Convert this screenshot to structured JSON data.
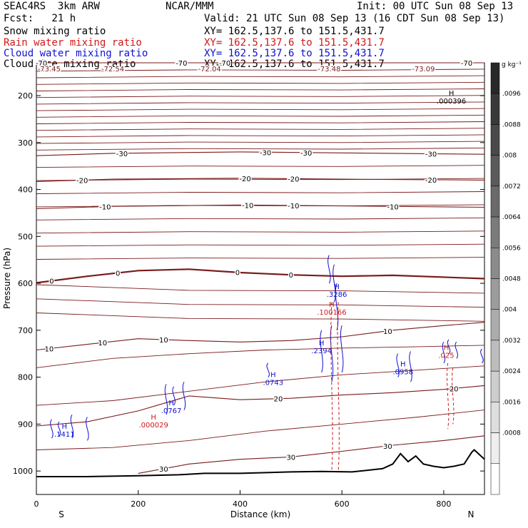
{
  "header": {
    "model": "SEAC4RS  3km ARW",
    "org": "NCAR/MMM",
    "init": "Init: 00 UTC Sun 08 Sep 13",
    "fcst": "Fcst:   21 h",
    "valid": "Valid: 21 UTC Sun 08 Sep 13 (16 CDT Sun 08 Sep 13)",
    "fields": [
      {
        "name": "Snow mixing ratio",
        "xy": "XY= 162.5,137.6 to 151.5,431.7",
        "color": "#000000"
      },
      {
        "name": "Rain water mixing ratio",
        "xy": "XY= 162.5,137.6 to 151.5,431.7",
        "color": "#d01818"
      },
      {
        "name": "Cloud water mixing ratio",
        "xy": "XY= 162.5,137.6 to 151.5,431.7",
        "color": "#1010d0"
      },
      {
        "name": "Cloud ice mixing ratio",
        "xy": "XY= 162.5,137.6 to 151.5,431.7",
        "color": "#000000"
      }
    ]
  },
  "colors": {
    "temperature": "#7a1a1a",
    "rain": "#d01818",
    "cloud": "#1010d0",
    "terrain": "#000000"
  },
  "chart_data": {
    "type": "cross-section",
    "xlabel": "Distance (km)",
    "ylabel": "Pressure (hPa)",
    "xlim": [
      0,
      880
    ],
    "ylim": [
      1050,
      130
    ],
    "x_ticks": [
      "0",
      "200",
      "400",
      "600",
      "800"
    ],
    "y_ticks": [
      "200",
      "300",
      "400",
      "500",
      "600",
      "700",
      "800",
      "900",
      "1000"
    ],
    "x_end_labels": {
      "left": "S",
      "right": "N"
    },
    "temperature_contours": [
      {
        "temp": -70,
        "labels": [
          {
            "x": 10,
            "text": "-70"
          },
          {
            "x": 285,
            "text": "-70"
          },
          {
            "x": 370,
            "text": "-70"
          },
          {
            "x": 845,
            "text": "-70"
          }
        ],
        "p": [
          [
            0,
            130
          ],
          [
            880,
            130
          ]
        ]
      },
      {
        "temp": -30,
        "labels": [
          {
            "x": 168,
            "text": "-30"
          },
          {
            "x": 450,
            "text": "-30"
          },
          {
            "x": 530,
            "text": "-30"
          },
          {
            "x": 775,
            "text": "-30"
          }
        ],
        "p": [
          [
            0,
            328
          ],
          [
            150,
            323
          ],
          [
            400,
            320
          ],
          [
            600,
            322
          ],
          [
            880,
            325
          ]
        ]
      },
      {
        "temp": -20,
        "labels": [
          {
            "x": 90,
            "text": "-20"
          },
          {
            "x": 410,
            "text": "-20"
          },
          {
            "x": 505,
            "text": "-20"
          },
          {
            "x": 775,
            "text": "-20"
          }
        ],
        "p": [
          [
            0,
            383
          ],
          [
            150,
            378
          ],
          [
            400,
            376
          ],
          [
            600,
            378
          ],
          [
            880,
            380
          ]
        ]
      },
      {
        "temp": -10,
        "labels": [
          {
            "x": 135,
            "text": "-10"
          },
          {
            "x": 415,
            "text": "-10"
          },
          {
            "x": 505,
            "text": "-10"
          },
          {
            "x": 700,
            "text": "-10"
          }
        ],
        "p": [
          [
            0,
            441
          ],
          [
            150,
            436
          ],
          [
            400,
            433
          ],
          [
            600,
            435
          ],
          [
            880,
            438
          ]
        ]
      },
      {
        "temp": 0,
        "labels": [
          {
            "x": 30,
            "text": "0"
          },
          {
            "x": 160,
            "text": "0"
          },
          {
            "x": 395,
            "text": "0"
          },
          {
            "x": 500,
            "text": "0"
          }
        ],
        "p": [
          [
            0,
            599
          ],
          [
            100,
            585
          ],
          [
            200,
            573
          ],
          [
            300,
            570
          ],
          [
            400,
            577
          ],
          [
            500,
            582
          ],
          [
            600,
            585
          ],
          [
            700,
            583
          ],
          [
            880,
            590
          ]
        ]
      },
      {
        "temp": 10,
        "labels": [
          {
            "x": 25,
            "text": "10"
          },
          {
            "x": 130,
            "text": "10"
          },
          {
            "x": 250,
            "text": "10"
          },
          {
            "x": 690,
            "text": "10"
          }
        ],
        "p": [
          [
            0,
            742
          ],
          [
            100,
            730
          ],
          [
            200,
            718
          ],
          [
            300,
            722
          ],
          [
            400,
            725
          ],
          [
            500,
            722
          ],
          [
            600,
            714
          ],
          [
            700,
            700
          ],
          [
            800,
            690
          ],
          [
            880,
            683
          ]
        ]
      },
      {
        "temp": 20,
        "labels": [
          {
            "x": 475,
            "text": "20"
          },
          {
            "x": 820,
            "text": "20"
          }
        ],
        "p": [
          [
            0,
            904
          ],
          [
            100,
            895
          ],
          [
            200,
            872
          ],
          [
            300,
            840
          ],
          [
            400,
            848
          ],
          [
            500,
            845
          ],
          [
            600,
            838
          ],
          [
            700,
            833
          ],
          [
            800,
            826
          ],
          [
            880,
            818
          ]
        ]
      },
      {
        "temp": 30,
        "labels": [
          {
            "x": 250,
            "text": "30"
          },
          {
            "x": 500,
            "text": "30"
          },
          {
            "x": 690,
            "text": "30"
          }
        ],
        "p": [
          [
            200,
            1005
          ],
          [
            300,
            985
          ],
          [
            400,
            975
          ],
          [
            500,
            970
          ],
          [
            600,
            958
          ],
          [
            700,
            945
          ],
          [
            800,
            935
          ],
          [
            880,
            925
          ]
        ]
      }
    ],
    "temperature_labels_top": [
      "-73.45",
      "-72.54",
      "-72.04",
      "-73.48",
      "-73.09"
    ],
    "extrema": [
      {
        "kind": "H",
        "value": ".000396",
        "field": "snow",
        "x": 815,
        "y": 200
      },
      {
        "kind": "H",
        "value": ".100166",
        "field": "rain",
        "x": 580,
        "y": 650
      },
      {
        "kind": "H",
        "value": ".000029",
        "field": "rain",
        "x": 230,
        "y": 890
      },
      {
        "kind": "H",
        "value": ".025",
        "field": "rain",
        "x": 805,
        "y": 742
      },
      {
        "kind": "H",
        "value": ".3286",
        "field": "cloud",
        "x": 590,
        "y": 612
      },
      {
        "kind": "H",
        "value": ".2394",
        "field": "cloud",
        "x": 560,
        "y": 732
      },
      {
        "kind": "H",
        "value": ".0958",
        "field": "cloud",
        "x": 720,
        "y": 777
      },
      {
        "kind": "H",
        "value": ".0767",
        "field": "cloud",
        "x": 265,
        "y": 860
      },
      {
        "kind": "H",
        "value": ".0743",
        "field": "cloud",
        "x": 465,
        "y": 800
      },
      {
        "kind": "H",
        "value": ".1411",
        "field": "cloud",
        "x": 55,
        "y": 910
      }
    ],
    "colorbar": {
      "unit": "g kg⁻¹",
      "ticks": [
        ".0096",
        ".0088",
        ".008",
        ".0072",
        ".0064",
        ".0056",
        ".0048",
        ".004",
        ".0032",
        ".0024",
        ".0016",
        ".0008"
      ]
    }
  }
}
